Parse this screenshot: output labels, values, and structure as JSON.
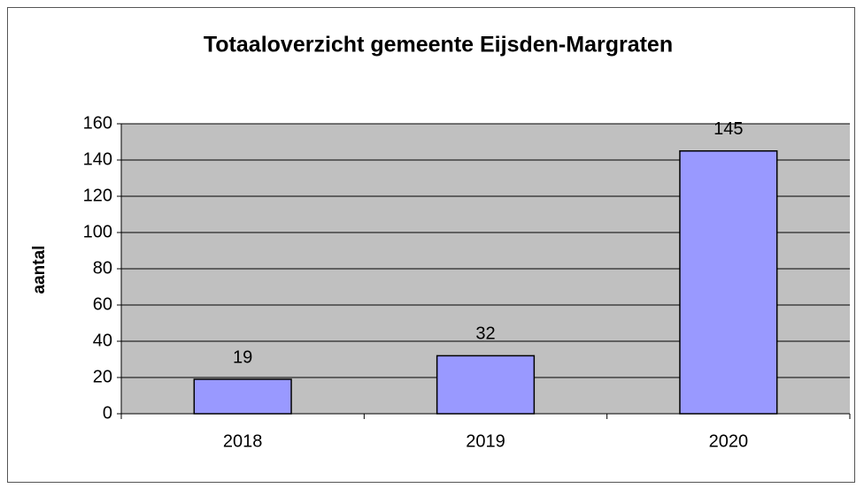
{
  "chart_data": {
    "type": "bar",
    "title": "Totaaloverzicht gemeente Eijsden-Margraten",
    "y_label": "aantal",
    "categories": [
      "2018",
      "2019",
      "2020"
    ],
    "values": [
      19,
      32,
      145
    ],
    "color": "#9999ff",
    "ylim": [
      0,
      160
    ],
    "yticks": [
      0,
      20,
      40,
      60,
      80,
      100,
      120,
      140,
      160
    ],
    "grid": true,
    "plot_background": "#c0c0c0",
    "data_labels": true
  }
}
